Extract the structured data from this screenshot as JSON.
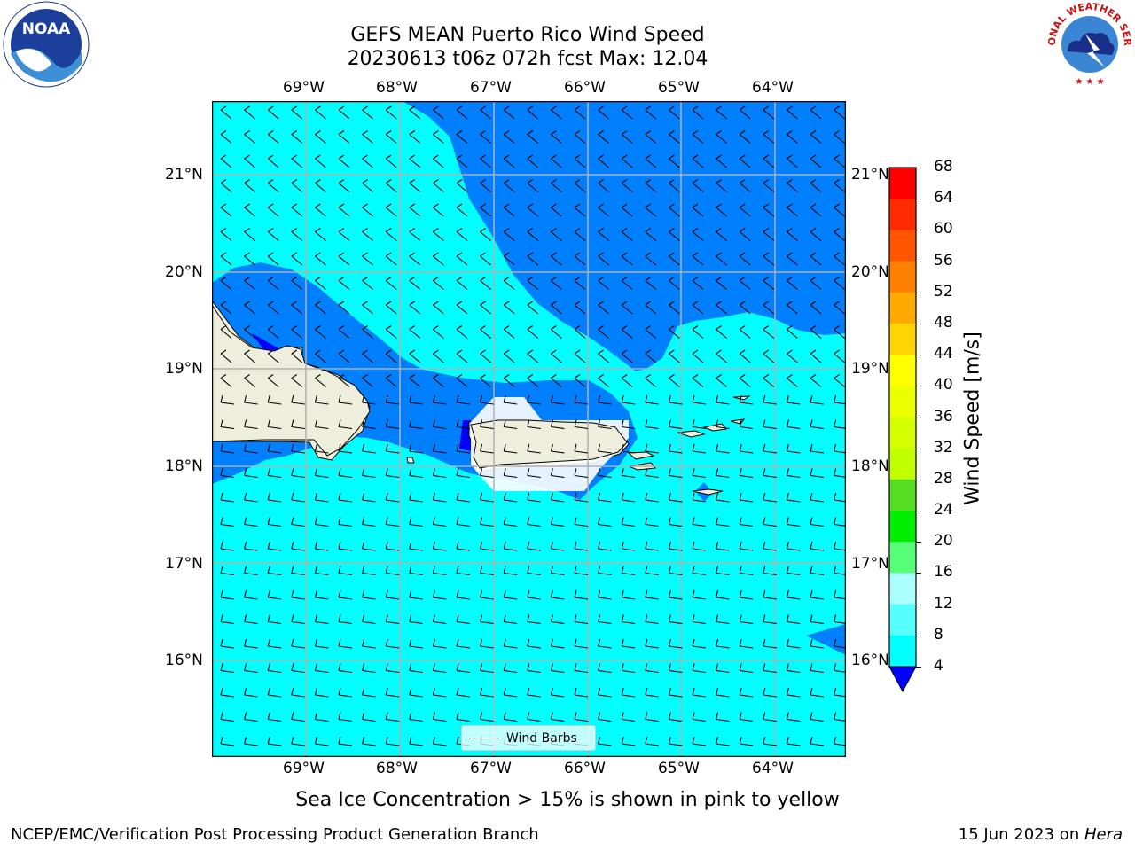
{
  "header": {
    "title_line1": "GEFS MEAN Puerto Rico Wind Speed",
    "title_line2": "20230613 t06z 072h fcst   Max: 12.04"
  },
  "axes": {
    "lon_labels": [
      "69°W",
      "68°W",
      "67°W",
      "66°W",
      "65°W",
      "64°W"
    ],
    "lat_labels": [
      "21°N",
      "20°N",
      "19°N",
      "18°N",
      "17°N",
      "16°N"
    ]
  },
  "colorbar": {
    "label": "Wind Speed [m/s]",
    "ticks": [
      "68",
      "64",
      "60",
      "56",
      "52",
      "48",
      "44",
      "40",
      "36",
      "32",
      "28",
      "24",
      "20",
      "16",
      "12",
      "8",
      "4"
    ],
    "colors": [
      "#ff0000",
      "#ff2a00",
      "#ff5500",
      "#ff8000",
      "#ffaa00",
      "#ffd400",
      "#ffff00",
      "#eaff00",
      "#d4ff00",
      "#bfff00",
      "#55dd22",
      "#00ee00",
      "#55ff77",
      "#aaffff",
      "#55ffff",
      "#00ffff",
      "#0080ff"
    ],
    "under_color": "#0000ff"
  },
  "legend": {
    "label": "Wind Barbs"
  },
  "subtitle": "Sea Ice Concentration > 15% is shown in pink to yellow",
  "footer": {
    "left": "NCEP/EMC/Verification Post Processing Product Generation Branch",
    "date": "15 Jun 2023 on ",
    "machine": "Hera"
  },
  "logos": {
    "left": "NOAA",
    "right": "NATIONAL WEATHER SERVICE"
  },
  "map_colors": {
    "ocean_light": "#00ffff",
    "ocean_mid": "#0080ff",
    "ocean_dark": "#0000ff",
    "land": "#eeeedd",
    "grid": "#b0b0b0"
  }
}
